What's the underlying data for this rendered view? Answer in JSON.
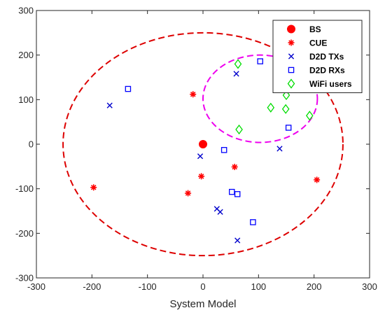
{
  "chart_data": {
    "type": "scatter",
    "title": "",
    "xlabel": "System Model",
    "ylabel": "",
    "xlim": [
      -300,
      300
    ],
    "ylim": [
      -300,
      300
    ],
    "xticks": [
      -300,
      -200,
      -100,
      0,
      100,
      200,
      300
    ],
    "yticks": [
      -300,
      -200,
      -100,
      0,
      100,
      200,
      300
    ],
    "grid": false,
    "legend_position": "top-right",
    "series": [
      {
        "name": "BS",
        "marker": "filled-circle",
        "color": "#ff0000",
        "x": [
          0
        ],
        "y": [
          0
        ]
      },
      {
        "name": "CUE",
        "marker": "asterisk",
        "color": "#ff0000",
        "x": [
          -18,
          -197,
          -3,
          -27,
          57,
          205
        ],
        "y": [
          112,
          -97,
          -72,
          -110,
          -51,
          -80
        ]
      },
      {
        "name": "D2D TXs",
        "marker": "x",
        "color": "#0000cc",
        "x": [
          -168,
          60,
          -5,
          138,
          25,
          31,
          62
        ],
        "y": [
          87,
          158,
          -27,
          -10,
          -145,
          -152,
          -216
        ]
      },
      {
        "name": "D2D RXs",
        "marker": "square",
        "color": "#0000ff",
        "x": [
          -135,
          103,
          38,
          154,
          52,
          62,
          90
        ],
        "y": [
          124,
          186,
          -13,
          37,
          -107,
          -112,
          -175
        ]
      },
      {
        "name": "WiFi users",
        "marker": "diamond",
        "color": "#00dd00",
        "x": [
          63,
          150,
          122,
          149,
          65,
          192
        ],
        "y": [
          180,
          110,
          82,
          79,
          33,
          64
        ]
      }
    ],
    "annotations": [
      {
        "shape": "ellipse",
        "style": "dashed",
        "color": "#dd0000",
        "cx": 0,
        "cy": 0,
        "rx": 252,
        "ry": 250
      },
      {
        "shape": "ellipse",
        "style": "dashed",
        "color": "#ee00ee",
        "cx": 103,
        "cy": 102,
        "rx": 103,
        "ry": 98
      }
    ]
  }
}
